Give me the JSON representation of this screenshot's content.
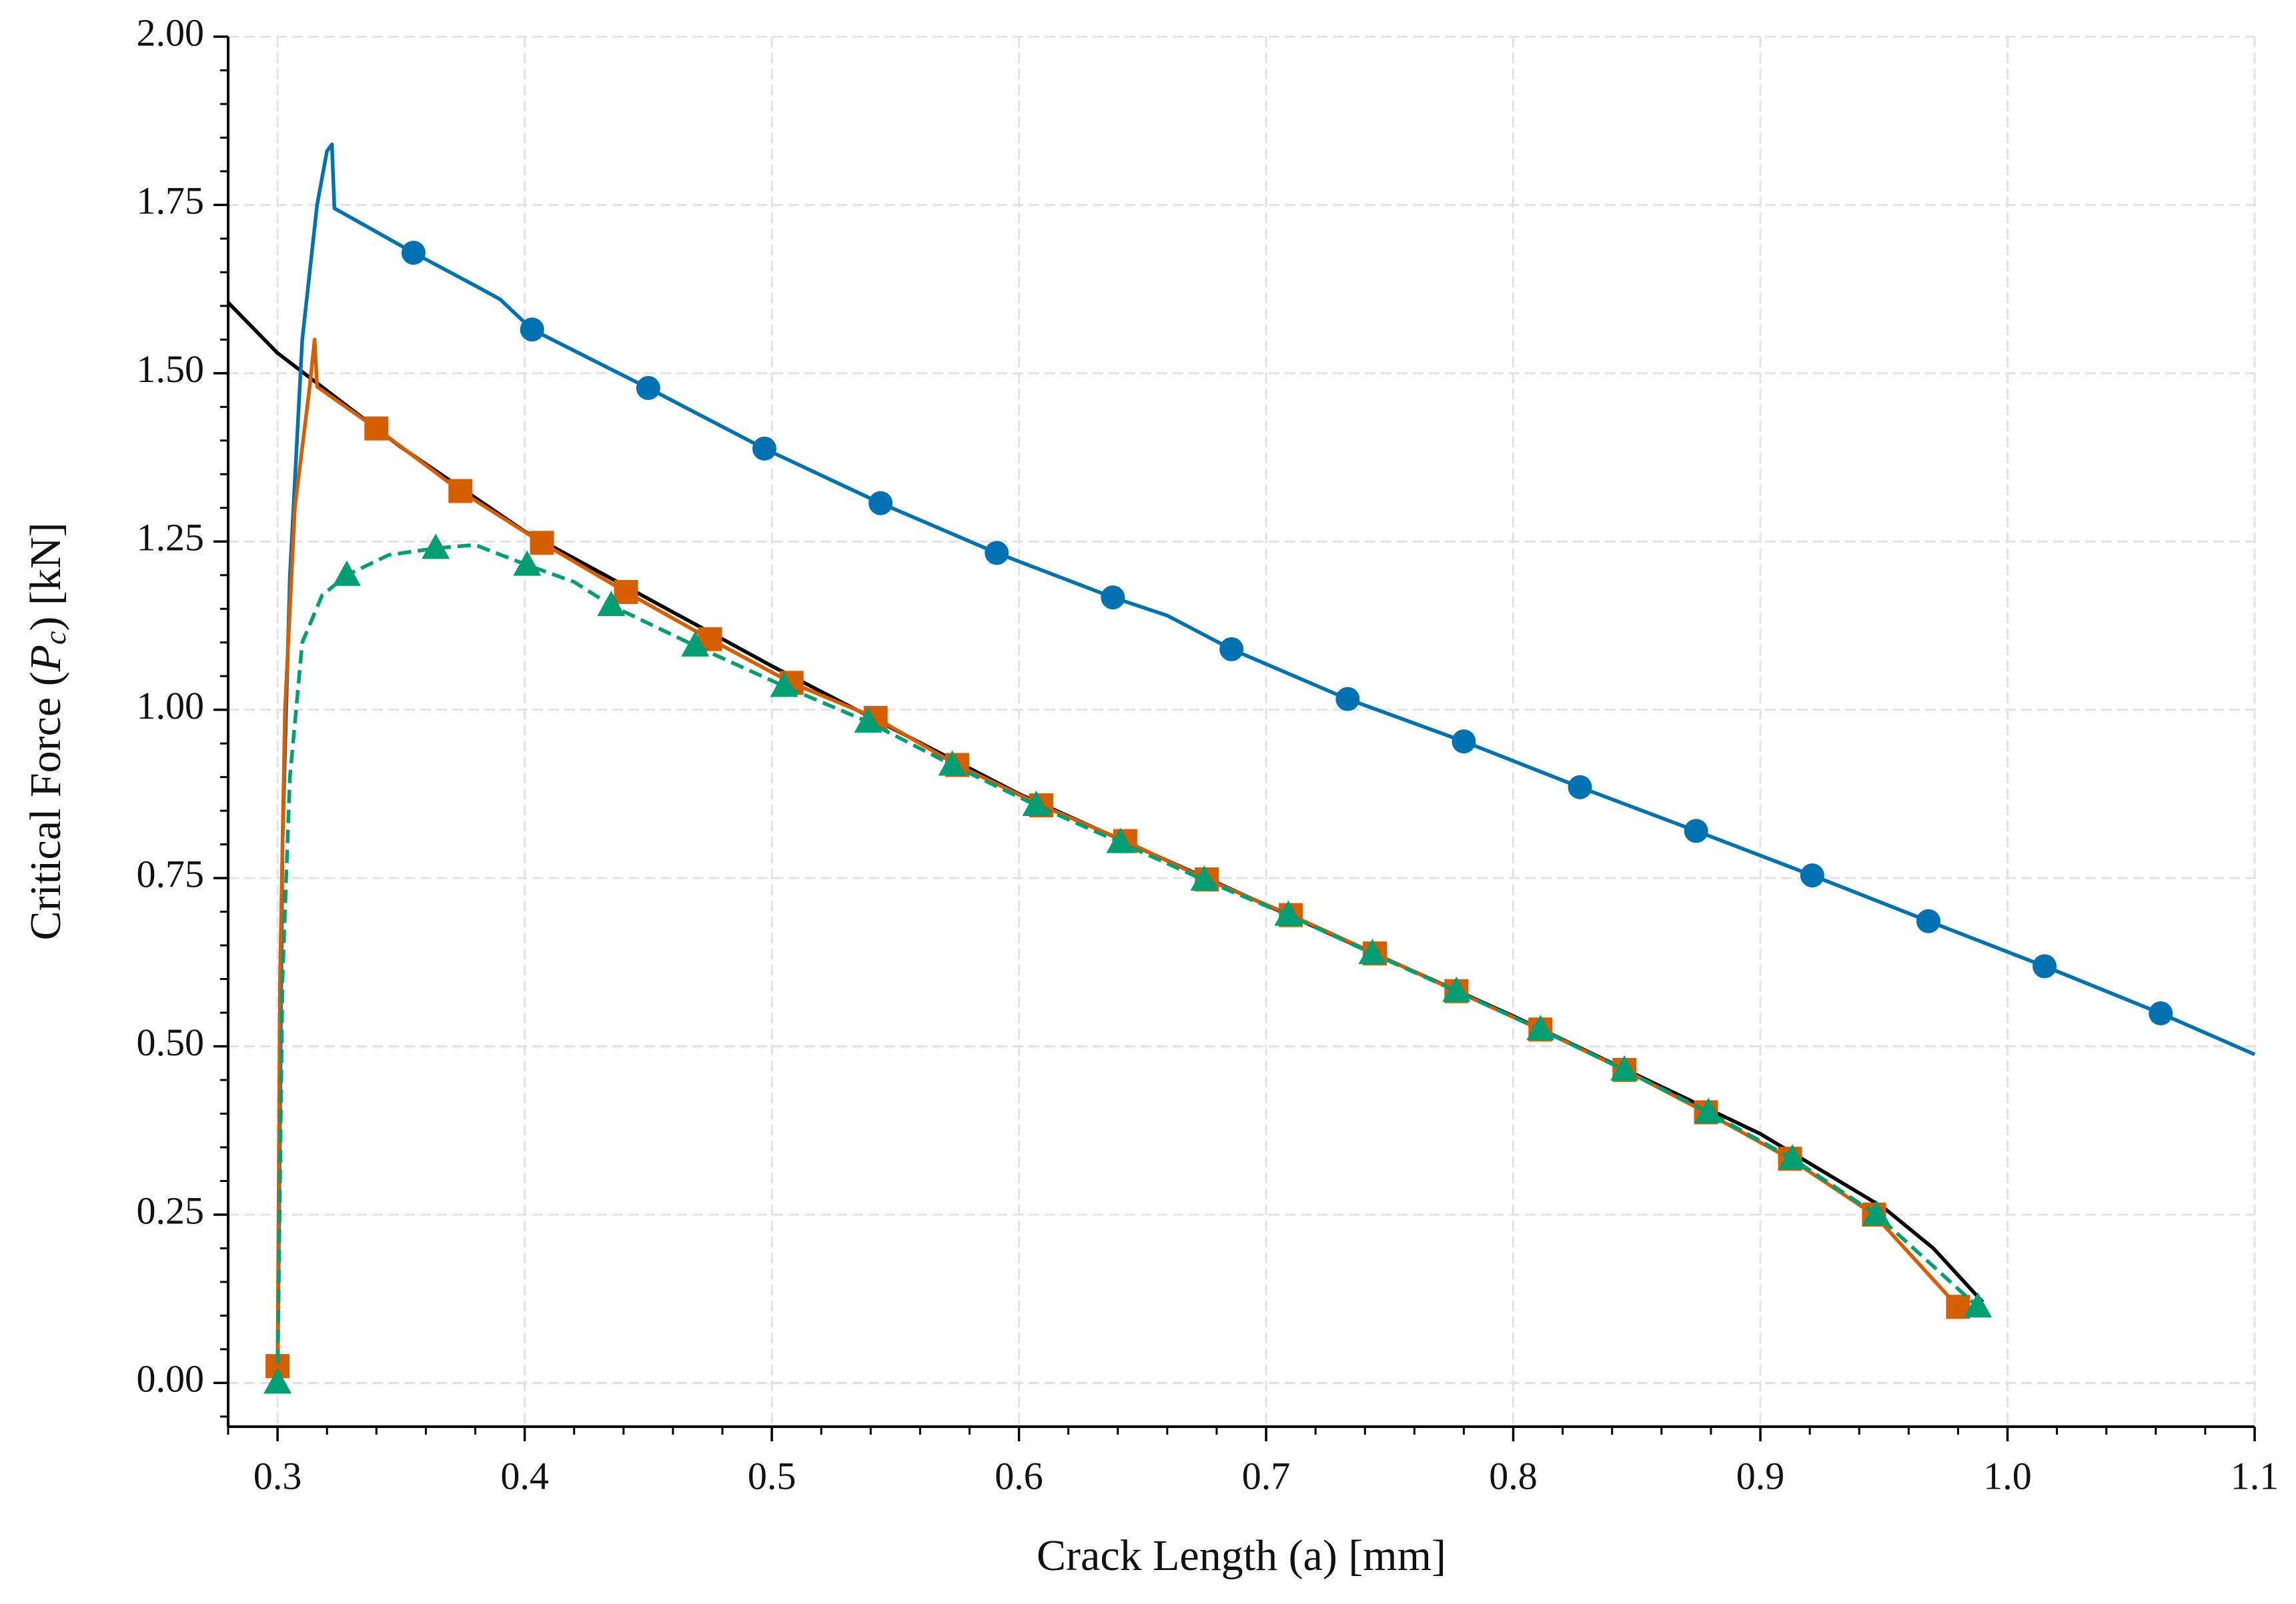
{
  "chart_data": {
    "type": "line",
    "xlabel": "Crack Length (a) [mm]",
    "ylabel_parts": [
      "Critical Force (",
      "P",
      "c",
      ") [kN]"
    ],
    "xlim": [
      0.28,
      1.1
    ],
    "xticks": [
      0.3,
      0.4,
      0.5,
      0.6,
      0.7,
      0.8,
      0.9,
      {
        "value": 1,
        "label": "1.0"
      },
      1.1
    ],
    "ylim": [
      -0.065,
      2.0
    ],
    "yticks": [
      {
        "value": 0,
        "label": "0.00"
      },
      0.25,
      {
        "value": 0.5,
        "label": "0.50"
      },
      0.75,
      {
        "value": 1,
        "label": "1.00"
      },
      1.25,
      {
        "value": 1.5,
        "label": "1.50"
      },
      1.75,
      {
        "value": 2,
        "label": "2.00"
      }
    ],
    "xminor_step": 0.02,
    "yminor_step": 0.05,
    "grid": true,
    "series": [
      {
        "color": "#000000",
        "dash": false,
        "marker": "none",
        "x": [
          0.28,
          0.3,
          0.35,
          0.4,
          0.5,
          0.6,
          0.7,
          0.8,
          0.9,
          0.95,
          0.97,
          0.99
        ],
        "values": [
          1.605,
          1.53,
          1.39,
          1.265,
          1.065,
          0.875,
          0.71,
          0.545,
          0.37,
          0.26,
          0.2,
          0.12
        ],
        "markevery": []
      },
      {
        "color": "#0072b2",
        "dash": false,
        "marker": "circle",
        "x": [
          0.3,
          0.302,
          0.305,
          0.31,
          0.316,
          0.32,
          0.322,
          0.323,
          0.34,
          0.355,
          0.38,
          0.39,
          0.403,
          0.45,
          0.497,
          0.544,
          0.591,
          0.638,
          0.66,
          0.686,
          0.733,
          0.78,
          0.827,
          0.874,
          0.921,
          0.968,
          1.015,
          1.062,
          1.1
        ],
        "values": [
          0.0,
          0.8,
          1.2,
          1.55,
          1.75,
          1.83,
          1.84,
          1.745,
          1.71,
          1.679,
          1.63,
          1.61,
          1.565,
          1.478,
          1.388,
          1.307,
          1.233,
          1.167,
          1.14,
          1.09,
          1.016,
          0.953,
          0.885,
          0.82,
          0.754,
          0.686,
          0.619,
          0.549,
          0.488
        ],
        "markevery": [
          9,
          12,
          13,
          14,
          15,
          16,
          17,
          19,
          20,
          21,
          22,
          23,
          24,
          25,
          26,
          27
        ]
      },
      {
        "color": "#d55e00",
        "dash": false,
        "marker": "square",
        "x": [
          0.3,
          0.301,
          0.303,
          0.307,
          0.313,
          0.315,
          0.316,
          0.34,
          0.374,
          0.407,
          0.441,
          0.475,
          0.508,
          0.542,
          0.575,
          0.609,
          0.643,
          0.676,
          0.71,
          0.744,
          0.777,
          0.811,
          0.845,
          0.878,
          0.912,
          0.946,
          0.98
        ],
        "values": [
          0.025,
          0.6,
          1.0,
          1.3,
          1.48,
          1.55,
          1.48,
          1.418,
          1.325,
          1.248,
          1.175,
          1.105,
          1.04,
          0.988,
          0.918,
          0.858,
          0.805,
          0.748,
          0.695,
          0.638,
          0.582,
          0.525,
          0.465,
          0.402,
          0.333,
          0.25,
          0.113
        ],
        "markevery": [
          0,
          7,
          8,
          9,
          10,
          11,
          12,
          13,
          14,
          15,
          16,
          17,
          18,
          19,
          20,
          21,
          22,
          23,
          24,
          25,
          26
        ]
      },
      {
        "color": "#009e73",
        "dash": true,
        "marker": "triangle",
        "x": [
          0.3,
          0.302,
          0.305,
          0.31,
          0.318,
          0.328,
          0.345,
          0.364,
          0.38,
          0.401,
          0.42,
          0.435,
          0.469,
          0.505,
          0.539,
          0.573,
          0.607,
          0.641,
          0.675,
          0.709,
          0.743,
          0.777,
          0.811,
          0.845,
          0.879,
          0.913,
          0.947,
          0.988
        ],
        "values": [
          0.0,
          0.6,
          0.9,
          1.1,
          1.17,
          1.2,
          1.23,
          1.24,
          1.245,
          1.215,
          1.19,
          1.155,
          1.095,
          1.035,
          0.982,
          0.918,
          0.858,
          0.803,
          0.747,
          0.695,
          0.638,
          0.582,
          0.525,
          0.465,
          0.402,
          0.333,
          0.25,
          0.113
        ],
        "markevery": [
          0,
          5,
          7,
          9,
          11,
          12,
          13,
          14,
          15,
          16,
          17,
          18,
          19,
          20,
          21,
          22,
          23,
          24,
          25,
          26,
          27
        ]
      }
    ]
  }
}
